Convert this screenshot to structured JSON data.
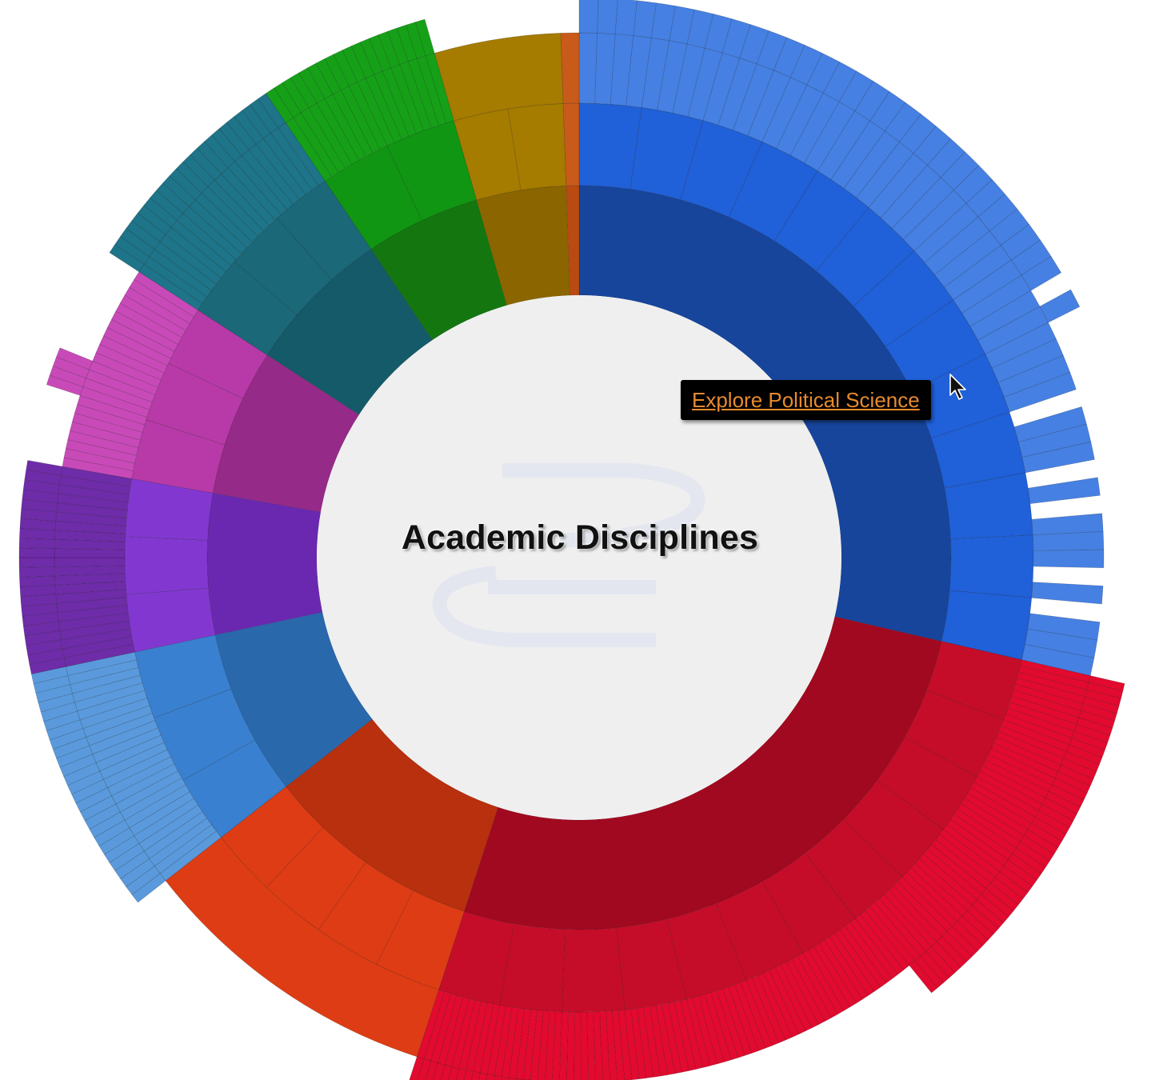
{
  "chart_data": {
    "type": "sunburst",
    "title": "Academic Disciplines",
    "tooltip": "Explore Political Science",
    "hovered": "Political Science",
    "sectors": [
      {
        "color": "#17459c",
        "mid": "#2060d8",
        "outer": "#4680e2",
        "start": 0,
        "end": 103,
        "tiers": [
          3,
          3,
          2,
          2,
          2,
          2,
          3,
          3,
          3,
          3,
          3,
          2,
          3,
          2,
          2,
          2,
          3,
          3,
          3,
          3,
          2,
          3,
          3,
          3,
          3,
          3,
          2,
          3,
          2,
          2,
          1,
          2,
          1,
          1,
          1,
          1,
          0,
          1,
          1,
          1,
          0,
          1,
          0,
          1,
          1,
          1,
          0,
          1,
          0,
          1,
          1,
          1
        ]
      },
      {
        "color": "#a10920",
        "mid": "#c50d29",
        "outer": "#e20a2f",
        "start": 103,
        "end": 198,
        "tiers": [
          2,
          2,
          2,
          2,
          2,
          2,
          2,
          2,
          2,
          2,
          2,
          2,
          2,
          2,
          2,
          2,
          2,
          2,
          2,
          2,
          2,
          2,
          2,
          2,
          2,
          2,
          2,
          2,
          2,
          2,
          2,
          2,
          2,
          2,
          2,
          2,
          2,
          2,
          2,
          2,
          2,
          2,
          2,
          2,
          2,
          2,
          2,
          2,
          1,
          1,
          1,
          1,
          1,
          1,
          1,
          1,
          1,
          1,
          1,
          1,
          1,
          1,
          1,
          1,
          1,
          1,
          1,
          1,
          1,
          1,
          1,
          1,
          1,
          1,
          1,
          1,
          1,
          1,
          1,
          1,
          1,
          1,
          1,
          1,
          1,
          1,
          1,
          1,
          1,
          1,
          1,
          1,
          1,
          1,
          1,
          2,
          2,
          2,
          2,
          2,
          2,
          2,
          2,
          2,
          2,
          2,
          2,
          2,
          2,
          2,
          2,
          2,
          2,
          2,
          2,
          2,
          2,
          2,
          2,
          2
        ]
      },
      {
        "color": "#b8300e",
        "mid": "#de3c14",
        "outer": "#de3c14",
        "start": 198,
        "end": 232,
        "tiers": [
          1
        ]
      },
      {
        "color": "#2a68ac",
        "mid": "#3a80d0",
        "outer": "#5a9adc",
        "start": 232,
        "end": 258,
        "tiers": [
          2,
          2,
          2,
          2,
          2,
          2,
          2,
          2,
          2,
          2,
          2,
          2,
          2,
          2,
          2,
          2,
          2,
          2,
          2,
          2,
          2,
          2,
          2,
          2,
          2,
          2
        ]
      },
      {
        "color": "#6a28b0",
        "mid": "#8238d0",
        "outer": "#6e2ca8",
        "start": 258,
        "end": 280,
        "tiers": [
          2,
          2,
          2,
          2,
          2,
          2,
          2,
          2,
          2,
          2,
          2,
          2,
          2,
          2,
          2,
          2,
          2,
          2,
          2,
          2,
          2,
          2
        ]
      },
      {
        "color": "#962a88",
        "mid": "#b83aa8",
        "outer": "#c84ab8",
        "start": 280,
        "end": 303,
        "tiers": [
          1,
          1,
          1,
          1,
          1,
          1,
          1,
          1,
          2,
          2,
          2,
          2,
          1,
          1,
          1,
          1,
          1,
          1,
          1,
          1,
          1,
          1,
          1
        ]
      },
      {
        "color": "#155a68",
        "mid": "#1a6878",
        "outer": "#1e7488",
        "start": 303,
        "end": 326,
        "tiers": [
          2,
          2,
          2,
          2,
          2,
          2,
          2,
          2,
          2,
          2,
          2,
          2,
          2,
          2,
          2,
          2,
          2,
          2,
          2,
          2,
          2,
          2,
          2
        ]
      },
      {
        "color": "#14760f",
        "mid": "#109612",
        "outer": "#16a018",
        "start": 326,
        "end": 344,
        "tiers": [
          2,
          2,
          2,
          2,
          2,
          2,
          2,
          2,
          2,
          2,
          2,
          2,
          2,
          2,
          2,
          2,
          2,
          2
        ]
      },
      {
        "color": "#8a6500",
        "mid": "#a57b00",
        "outer": "#a57b00",
        "start": 344,
        "end": 358,
        "tiers": [
          1
        ]
      },
      {
        "color": "#b84a12",
        "mid": "#c85a1a",
        "outer": "#c85a1a",
        "start": 358,
        "end": 360,
        "tiers": [
          1
        ]
      }
    ]
  }
}
